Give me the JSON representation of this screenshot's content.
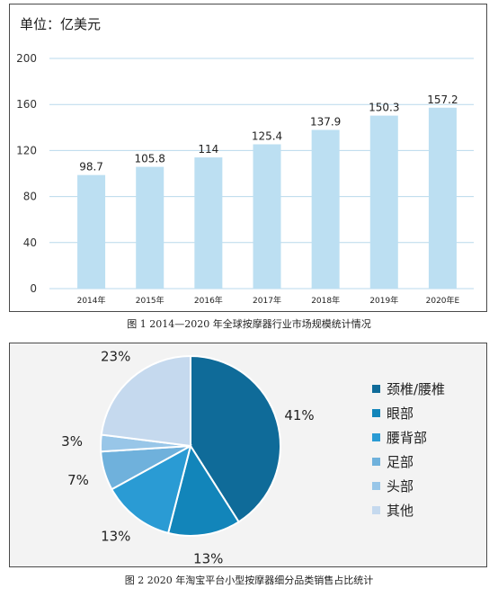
{
  "figure1": {
    "unit_label": "单位：亿美元",
    "caption": "图 1 2014—2020 年全球按摩器行业市场规模统计情况",
    "chart_data": {
      "type": "bar",
      "categories": [
        "2014年",
        "2015年",
        "2016年",
        "2017年",
        "2018年",
        "2019年",
        "2020年E"
      ],
      "values": [
        98.7,
        105.8,
        114,
        125.4,
        137.9,
        150.3,
        157.2
      ],
      "value_labels": [
        "98.7",
        "105.8",
        "114",
        "125.4",
        "137.9",
        "150.3",
        "157.2"
      ],
      "ylim": [
        0,
        200
      ],
      "yticks": [
        0,
        40,
        80,
        120,
        160,
        200
      ],
      "grid": true,
      "bar_color": "#bcdff2",
      "grid_color": "#b9d9ec"
    }
  },
  "figure2": {
    "caption": "图 2 2020 年淘宝平台小型按摩器细分品类销售占比统计",
    "chart_data": {
      "type": "pie",
      "labels": [
        "颈椎/腰椎",
        "眼部",
        "腰背部",
        "足部",
        "头部",
        "其他"
      ],
      "values": [
        41,
        13,
        13,
        7,
        3,
        23
      ],
      "value_labels": [
        "41%",
        "13%",
        "13%",
        "7%",
        "3%",
        "23%"
      ],
      "colors": [
        "#0f6b99",
        "#1285ba",
        "#2a9bd4",
        "#6fb1dc",
        "#98c6e8",
        "#c5d9ee"
      ],
      "legend_position": "right",
      "background": "#f3f3f3"
    }
  }
}
